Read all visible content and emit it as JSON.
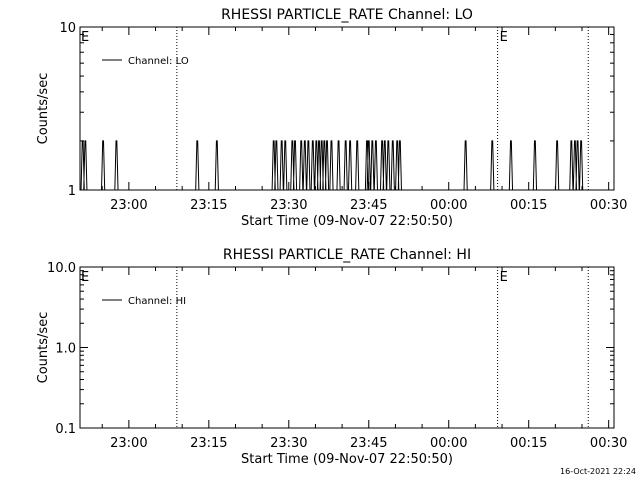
{
  "chart_data": [
    {
      "type": "line",
      "title": "RHESSI PARTICLE_RATE Channel: LO",
      "xlabel": "Start Time (09-Nov-07 22:50:50)",
      "ylabel": "Counts/sec",
      "yscale": "log",
      "ylim": [
        1,
        10
      ],
      "y_ticks": [
        "1",
        "10"
      ],
      "xlim": [
        "22:50:50",
        "00:31:00"
      ],
      "x_ticks": [
        "23:00",
        "23:15",
        "23:30",
        "23:45",
        "00:00",
        "00:15",
        "00:30"
      ],
      "legend": {
        "entries": [
          "Channel: LO"
        ],
        "position": "upper-left"
      },
      "marker_lines": [
        {
          "time": "23:09:00",
          "label": ""
        },
        {
          "time": "00:09:10",
          "label": "E"
        },
        {
          "time": "00:26:10",
          "label": ""
        }
      ],
      "edge_labels": [
        "E"
      ],
      "series": [
        {
          "name": "Channel: LO",
          "baseline": 1,
          "spike_value": 2,
          "spikes": [
            "22:51:20",
            "22:51:50",
            "22:55:10",
            "22:57:40",
            "23:12:50",
            "23:16:30",
            "23:27:10",
            "23:27:40",
            "23:28:40",
            "23:29:20",
            "23:30:40",
            "23:31:10",
            "23:32:20",
            "23:33:00",
            "23:33:40",
            "23:34:30",
            "23:35:10",
            "23:35:40",
            "23:36:10",
            "23:36:40",
            "23:37:10",
            "23:38:00",
            "23:39:20",
            "23:40:40",
            "23:41:30",
            "23:42:50",
            "23:44:40",
            "23:45:00",
            "23:45:40",
            "23:46:20",
            "23:47:30",
            "23:48:00",
            "23:48:40",
            "23:49:30",
            "23:50:20",
            "23:50:50",
            "00:03:10",
            "00:08:10",
            "00:11:40",
            "00:16:10",
            "00:20:20",
            "00:23:00",
            "00:23:40",
            "00:24:10",
            "00:24:50"
          ]
        }
      ]
    },
    {
      "type": "line",
      "title": "RHESSI PARTICLE_RATE Channel: HI",
      "xlabel": "Start Time (09-Nov-07 22:50:50)",
      "ylabel": "Counts/sec",
      "yscale": "log",
      "ylim": [
        0.1,
        10
      ],
      "y_ticks": [
        "0.1",
        "1.0",
        "10.0"
      ],
      "xlim": [
        "22:50:50",
        "00:31:00"
      ],
      "x_ticks": [
        "23:00",
        "23:15",
        "23:30",
        "23:45",
        "00:00",
        "00:15",
        "00:30"
      ],
      "legend": {
        "entries": [
          "Channel: HI"
        ],
        "position": "upper-left"
      },
      "marker_lines": [
        {
          "time": "23:09:00",
          "label": ""
        },
        {
          "time": "00:09:10",
          "label": "E"
        },
        {
          "time": "00:26:10",
          "label": ""
        }
      ],
      "edge_labels": [
        "E"
      ],
      "series": [
        {
          "name": "Channel: HI",
          "values": []
        }
      ]
    }
  ],
  "footer": {
    "timestamp": "16-Oct-2021 22:24"
  }
}
